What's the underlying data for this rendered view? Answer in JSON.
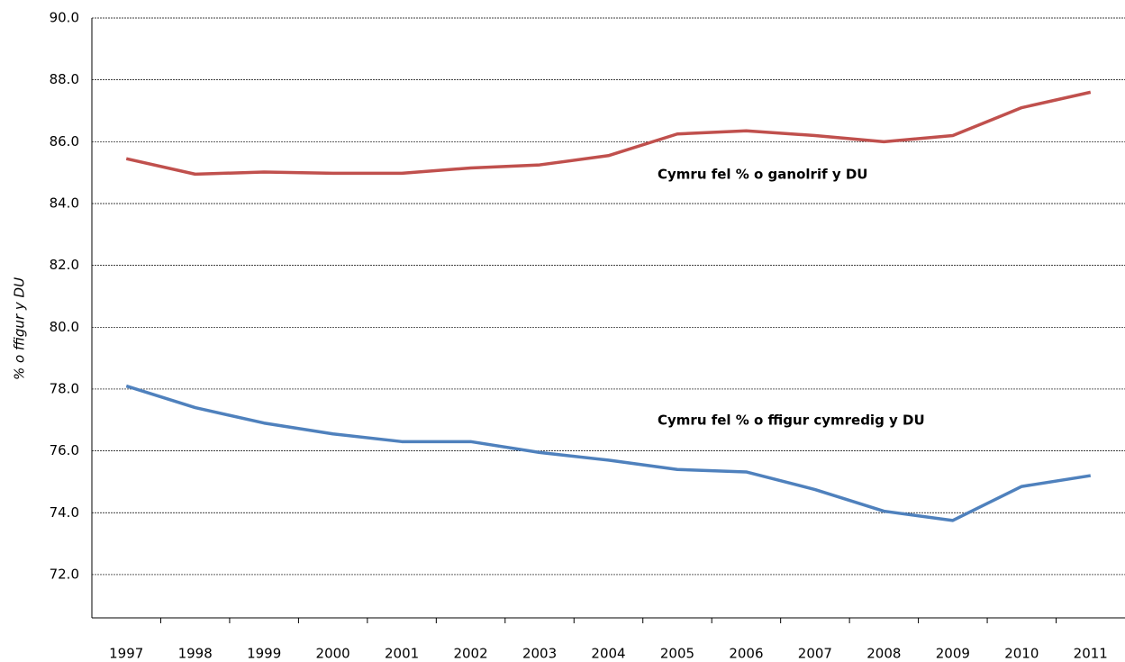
{
  "chart_data": {
    "type": "line",
    "y_label": "% o ffigur y DU",
    "categories": [
      "1997",
      "1998",
      "1999",
      "2000",
      "2001",
      "2002",
      "2003",
      "2004",
      "2005",
      "2006",
      "2007",
      "2008",
      "2009",
      "2010",
      "2011"
    ],
    "series": [
      {
        "name": "Cymru fel % o ganolrif y DU",
        "color": "#c0504d",
        "values": [
          85.45,
          84.95,
          85.02,
          84.98,
          84.98,
          85.15,
          85.25,
          85.55,
          86.25,
          86.35,
          86.2,
          86.0,
          86.2,
          87.1,
          87.6
        ]
      },
      {
        "name": "Cymru fel % o ffigur cymredig y DU",
        "color": "#4f81bd",
        "values": [
          78.1,
          77.4,
          76.9,
          76.55,
          76.3,
          76.3,
          75.95,
          75.7,
          75.4,
          75.32,
          74.75,
          74.05,
          73.75,
          74.85,
          75.2
        ]
      }
    ],
    "ylim": [
      70.6,
      90
    ],
    "yticks": [
      {
        "value": 72,
        "label": "72.0"
      },
      {
        "value": 74,
        "label": "74.0"
      },
      {
        "value": 76,
        "label": "76.0"
      },
      {
        "value": 78,
        "label": "78.0"
      },
      {
        "value": 80,
        "label": "80.0"
      },
      {
        "value": 82,
        "label": "82.0"
      },
      {
        "value": 84,
        "label": "84.0"
      },
      {
        "value": 86,
        "label": "86.0"
      },
      {
        "value": 88,
        "label": "88.0"
      },
      {
        "value": 90,
        "label": "90.0"
      }
    ],
    "grid": true
  }
}
